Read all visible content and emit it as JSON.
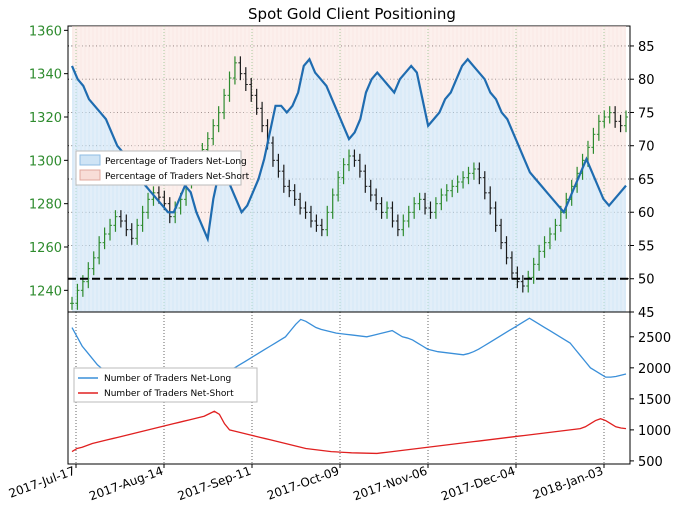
{
  "chart_data": [
    {
      "type": "line",
      "title": "Spot Gold Client Positioning",
      "x_ticks": [
        "2017-Jul-17",
        "2017-Aug-14",
        "2017-Sep-11",
        "2017-Oct-09",
        "2017-Nov-06",
        "2017-Dec-04",
        "2018-Jan-03"
      ],
      "y_left_ticks": [
        1240,
        1260,
        1280,
        1300,
        1320,
        1340,
        1360
      ],
      "y_left_range": [
        1230,
        1362
      ],
      "y_right_ticks": [
        45,
        50,
        55,
        60,
        65,
        70,
        75,
        80,
        85
      ],
      "y_right_range": [
        45,
        88
      ],
      "reference_line_pct": 50,
      "legend": {
        "placement": "left",
        "entries": [
          "Percentage of Traders Net-Long",
          "Percentage of Traders Net-Short"
        ]
      },
      "colors": {
        "price_up": "#2e8b2e",
        "price_down": "#1a1a1a",
        "pct_line": "#1f6cb0",
        "long_fill": "#cfe4f5",
        "short_fill": "#f8ddd7",
        "grid_v": "#4caf50",
        "grid_h": "#000000"
      },
      "series": [
        {
          "name": "Spot Gold",
          "axis": "left",
          "values": [
            1234,
            1240,
            1244,
            1250,
            1255,
            1262,
            1266,
            1270,
            1274,
            1272,
            1268,
            1264,
            1270,
            1276,
            1282,
            1285,
            1283,
            1280,
            1274,
            1278,
            1282,
            1290,
            1296,
            1300,
            1305,
            1310,
            1316,
            1322,
            1330,
            1338,
            1345,
            1340,
            1335,
            1330,
            1324,
            1316,
            1308,
            1300,
            1295,
            1288,
            1286,
            1282,
            1278,
            1276,
            1272,
            1270,
            1268,
            1276,
            1284,
            1292,
            1298,
            1302,
            1300,
            1295,
            1288,
            1284,
            1280,
            1276,
            1278,
            1272,
            1268,
            1272,
            1276,
            1280,
            1282,
            1278,
            1276,
            1280,
            1284,
            1286,
            1288,
            1290,
            1292,
            1294,
            1296,
            1292,
            1285,
            1278,
            1270,
            1262,
            1255,
            1248,
            1244,
            1242,
            1246,
            1252,
            1258,
            1262,
            1266,
            1270,
            1276,
            1282,
            1288,
            1294,
            1300,
            1306,
            1312,
            1318,
            1320,
            1322,
            1318,
            1316,
            1320
          ]
        },
        {
          "name": "Percentage of Traders Net-Long",
          "axis": "right",
          "values": [
            82,
            80,
            79,
            77,
            76,
            75,
            74,
            72,
            70,
            69,
            68,
            66,
            65,
            64,
            63,
            62,
            61,
            60,
            60,
            62,
            64,
            63,
            60,
            58,
            56,
            62,
            66,
            68,
            64,
            62,
            60,
            61,
            63,
            65,
            68,
            72,
            76,
            76,
            75,
            76,
            78,
            82,
            83,
            81,
            80,
            79,
            77,
            75,
            73,
            71,
            72,
            74,
            78,
            80,
            81,
            80,
            79,
            78,
            80,
            81,
            82,
            81,
            77,
            73,
            74,
            75,
            77,
            78,
            80,
            82,
            83,
            82,
            81,
            80,
            78,
            77,
            75,
            74,
            72,
            70,
            68,
            66,
            65,
            64,
            63,
            62,
            61,
            60,
            62,
            64,
            66,
            68,
            66,
            64,
            62,
            61,
            62,
            63,
            64
          ]
        }
      ]
    },
    {
      "type": "line",
      "y_right_ticks": [
        500,
        1000,
        1500,
        2000,
        2500
      ],
      "y_right_range": [
        450,
        2900
      ],
      "legend": {
        "placement": "left",
        "entries": [
          "Number of Traders Net-Long",
          "Number of Traders Net-Short"
        ]
      },
      "colors": {
        "net_long": "#3a8fd9",
        "net_short": "#e02020"
      },
      "series": [
        {
          "name": "Number of Traders Net-Long",
          "values": [
            2650,
            2500,
            2350,
            2250,
            2150,
            2050,
            1980,
            1950,
            1900,
            1880,
            1860,
            1850,
            1840,
            1820,
            1800,
            1780,
            1760,
            1750,
            1740,
            1720,
            1710,
            1720,
            1740,
            1760,
            1790,
            1820,
            1850,
            1870,
            1900,
            1920,
            1950,
            1980,
            2000,
            2050,
            2100,
            2150,
            2200,
            2250,
            2300,
            2350,
            2400,
            2450,
            2500,
            2600,
            2700,
            2780,
            2750,
            2700,
            2650,
            2620,
            2600,
            2580,
            2560,
            2550,
            2540,
            2530,
            2520,
            2510,
            2500,
            2520,
            2540,
            2560,
            2580,
            2600,
            2550,
            2500,
            2480,
            2450,
            2400,
            2350,
            2300,
            2280,
            2260,
            2250,
            2240,
            2230,
            2220,
            2210,
            2230,
            2260,
            2300,
            2350,
            2400,
            2450,
            2500,
            2550,
            2600,
            2650,
            2700,
            2750,
            2800,
            2750,
            2700,
            2650,
            2600,
            2550,
            2500,
            2450,
            2400,
            2300,
            2200,
            2100,
            2000,
            1950,
            1900,
            1850,
            1850,
            1860,
            1880,
            1900
          ]
        },
        {
          "name": "Number of Traders Net-Short",
          "values": [
            650,
            700,
            720,
            750,
            780,
            800,
            820,
            840,
            860,
            880,
            900,
            920,
            940,
            960,
            980,
            1000,
            1020,
            1040,
            1060,
            1080,
            1100,
            1120,
            1140,
            1160,
            1180,
            1200,
            1220,
            1260,
            1300,
            1250,
            1100,
            1000,
            980,
            960,
            940,
            920,
            900,
            880,
            860,
            840,
            820,
            800,
            780,
            760,
            740,
            720,
            700,
            690,
            680,
            670,
            660,
            650,
            645,
            640,
            635,
            630,
            628,
            626,
            624,
            622,
            620,
            630,
            640,
            650,
            660,
            670,
            680,
            690,
            700,
            710,
            720,
            730,
            740,
            750,
            760,
            770,
            780,
            790,
            800,
            810,
            820,
            830,
            840,
            850,
            860,
            870,
            880,
            890,
            900,
            910,
            920,
            930,
            940,
            950,
            960,
            970,
            980,
            990,
            1000,
            1010,
            1020,
            1050,
            1100,
            1150,
            1180,
            1150,
            1100,
            1050,
            1030,
            1020
          ]
        }
      ]
    }
  ]
}
